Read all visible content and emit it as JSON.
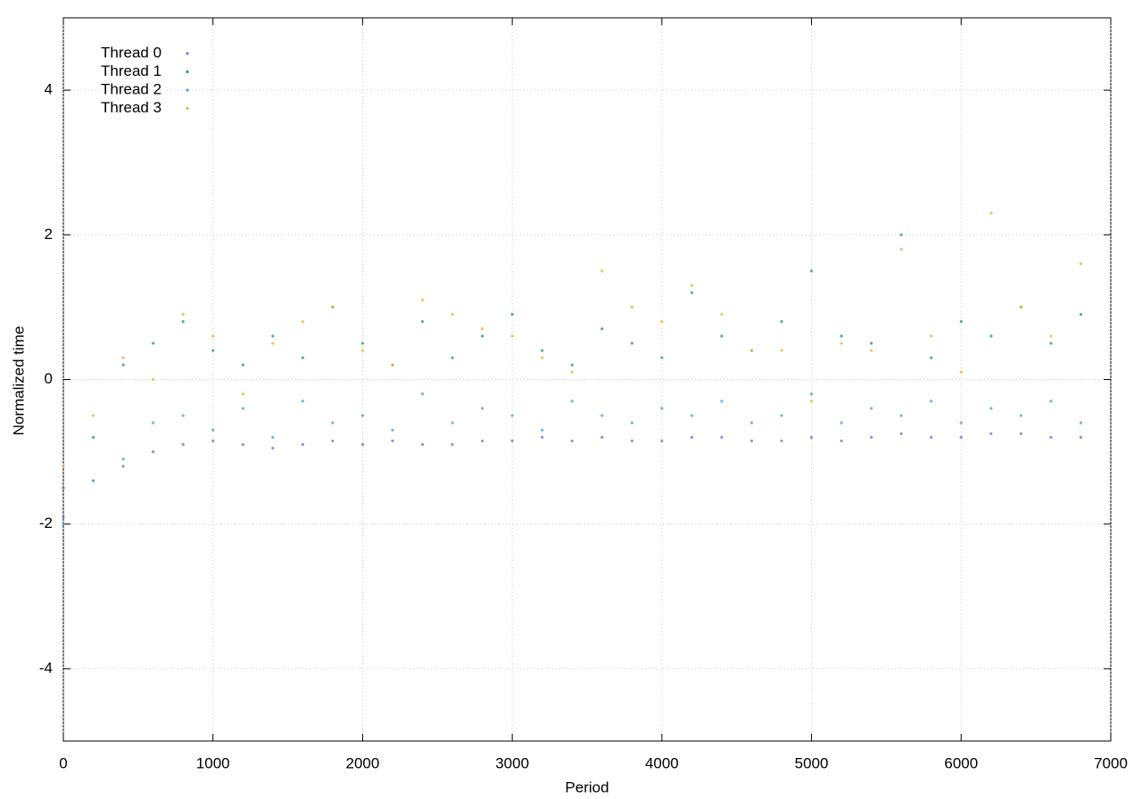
{
  "chart_data": {
    "type": "scatter",
    "xlabel": "Period",
    "ylabel": "Normalized time",
    "xlim": [
      0,
      7000
    ],
    "ylim": [
      -5,
      5
    ],
    "xticks": [
      0,
      1000,
      2000,
      3000,
      4000,
      5000,
      6000,
      7000
    ],
    "yticks": [
      -4,
      -2,
      0,
      2,
      4
    ],
    "grid": true,
    "legend": "upper left",
    "x": [
      0,
      200,
      400,
      600,
      800,
      1000,
      1200,
      1400,
      1600,
      1800,
      2000,
      2200,
      2400,
      2600,
      2800,
      3000,
      3200,
      3400,
      3600,
      3800,
      4000,
      4200,
      4400,
      4600,
      4800,
      5000,
      5200,
      5400,
      5600,
      5800,
      6000,
      6200,
      6400,
      6600,
      6800
    ],
    "series": [
      {
        "name": "Thread 0",
        "color": "#9467d8",
        "values": [
          -1.9,
          -1.4,
          -1.2,
          -1.0,
          -0.9,
          -0.85,
          -0.9,
          -0.95,
          -0.9,
          -0.85,
          -0.9,
          -0.85,
          -0.9,
          -0.9,
          -0.85,
          -0.85,
          -0.8,
          -0.85,
          -0.8,
          -0.85,
          -0.85,
          -0.8,
          -0.8,
          -0.85,
          -0.85,
          -0.8,
          -0.85,
          -0.8,
          -0.75,
          -0.8,
          -0.8,
          -0.75,
          -0.75,
          -0.8,
          -0.8
        ]
      },
      {
        "name": "Thread 1",
        "color": "#2a9d6a",
        "values": [
          -1.5,
          -0.8,
          0.2,
          0.5,
          0.8,
          0.4,
          0.2,
          0.6,
          0.3,
          1.0,
          0.5,
          0.2,
          0.8,
          0.3,
          0.6,
          0.9,
          0.4,
          0.2,
          0.7,
          0.5,
          0.3,
          1.2,
          0.6,
          0.4,
          0.8,
          1.5,
          0.6,
          0.5,
          2.0,
          0.3,
          0.8,
          0.6,
          1.0,
          0.5,
          0.9
        ]
      },
      {
        "name": "Thread 2",
        "color": "#4aa8e0",
        "values": [
          -2.0,
          -1.4,
          -1.1,
          -0.6,
          -0.5,
          -0.7,
          -0.4,
          -0.8,
          -0.3,
          -0.6,
          -0.5,
          -0.7,
          -0.2,
          -0.6,
          -0.4,
          -0.5,
          -0.7,
          -0.3,
          -0.5,
          -0.6,
          -0.4,
          -0.5,
          -0.3,
          -0.6,
          -0.5,
          -0.2,
          -0.6,
          -0.4,
          -0.5,
          -0.3,
          -0.6,
          -0.4,
          -0.5,
          -0.3,
          -0.6
        ]
      },
      {
        "name": "Thread 3",
        "color": "#f0b040",
        "values": [
          -1.2,
          -0.5,
          0.3,
          0.0,
          0.9,
          0.6,
          -0.2,
          0.5,
          0.8,
          1.0,
          0.4,
          0.2,
          1.1,
          0.9,
          0.7,
          0.6,
          0.3,
          0.1,
          1.5,
          1.0,
          0.8,
          1.3,
          0.9,
          0.4,
          0.4,
          -0.3,
          0.5,
          0.4,
          1.8,
          0.6,
          0.1,
          2.3,
          1.0,
          0.6,
          1.6
        ]
      }
    ]
  }
}
